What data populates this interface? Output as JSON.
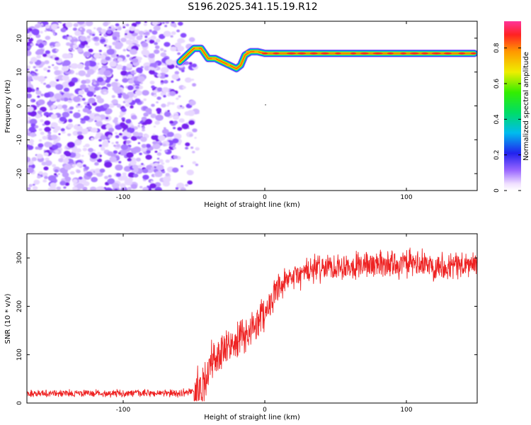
{
  "title": "S196.2025.341.15.19.R12",
  "chart_data": [
    {
      "type": "heatmap",
      "xlabel": "Height of straight line (km)",
      "ylabel": "Frequency (Hz)",
      "xlim": [
        -168,
        150
      ],
      "ylim": [
        -25,
        25
      ],
      "xticks": [
        -100,
        0,
        100
      ],
      "yticks": [
        -20,
        -10,
        0,
        10,
        20
      ],
      "colorbar": {
        "label": "Normalized spectral amplitude",
        "range": [
          0,
          0.95
        ],
        "ticks": [
          0,
          0.2,
          0.4,
          0.6,
          0.8
        ]
      },
      "noise_region_x": [
        -168,
        -55
      ],
      "tone_track": [
        {
          "x": -60,
          "y": 13
        },
        {
          "x": -55,
          "y": 15
        },
        {
          "x": -50,
          "y": 17
        },
        {
          "x": -45,
          "y": 17
        },
        {
          "x": -40,
          "y": 14
        },
        {
          "x": -35,
          "y": 14
        },
        {
          "x": -30,
          "y": 13
        },
        {
          "x": -25,
          "y": 12
        },
        {
          "x": -20,
          "y": 11
        },
        {
          "x": -17,
          "y": 12
        },
        {
          "x": -14,
          "y": 15
        },
        {
          "x": -10,
          "y": 16
        },
        {
          "x": -5,
          "y": 16
        },
        {
          "x": 0,
          "y": 15.5
        },
        {
          "x": 50,
          "y": 15.5
        },
        {
          "x": 100,
          "y": 15.5
        },
        {
          "x": 148,
          "y": 15.5
        }
      ]
    },
    {
      "type": "line",
      "xlabel": "Height of straight line (km)",
      "ylabel": "SNR (10 * v/v)",
      "xlim": [
        -168,
        150
      ],
      "ylim": [
        0,
        350
      ],
      "xticks": [
        -100,
        0,
        100
      ],
      "yticks": [
        0,
        100,
        200,
        300
      ],
      "series": [
        {
          "color": "#ee2222",
          "trend_x": [
            -168,
            -100,
            -60,
            -45,
            -40,
            -35,
            -30,
            -20,
            -10,
            0,
            10,
            20,
            30,
            40,
            60,
            80,
            100,
            120,
            150
          ],
          "trend_y": [
            20,
            20,
            20,
            28,
            70,
            95,
            105,
            125,
            150,
            190,
            235,
            260,
            272,
            280,
            285,
            287,
            288,
            285,
            285
          ]
        }
      ]
    }
  ]
}
